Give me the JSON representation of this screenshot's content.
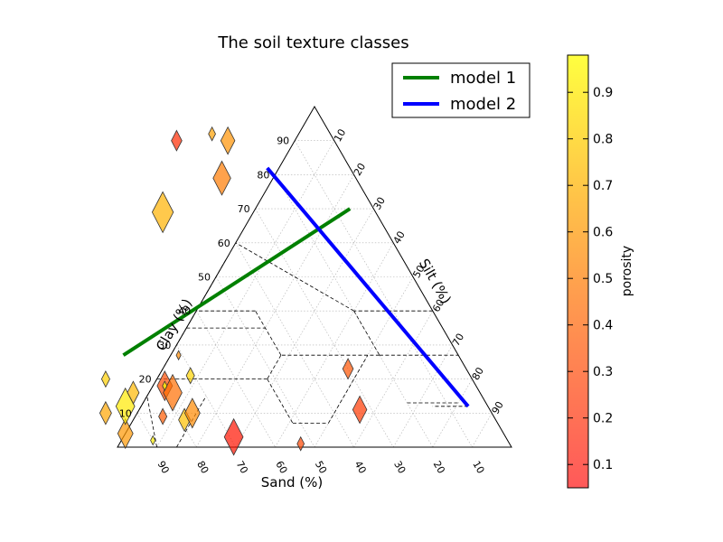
{
  "chart_data": {
    "type": "scatter",
    "title": "The soil texture classes",
    "axes": {
      "sand": {
        "label": "Sand (%)",
        "ticks": [
          10,
          20,
          30,
          40,
          50,
          60,
          70,
          80,
          90
        ]
      },
      "clay": {
        "label": "Clay (%)",
        "ticks": [
          10,
          20,
          30,
          40,
          50,
          60,
          70,
          80,
          90
        ]
      },
      "silt": {
        "label": "Silt (%)",
        "ticks": [
          10,
          20,
          30,
          40,
          50,
          60,
          70,
          80,
          90
        ]
      }
    },
    "grid": true,
    "legend": {
      "placement": "top-right",
      "entries": [
        {
          "label": "model 1",
          "color": "#008000"
        },
        {
          "label": "model 2",
          "color": "#0000ff"
        }
      ]
    },
    "lines": [
      {
        "name": "model 1",
        "color": "#008000",
        "points": [
          {
            "sand": 85,
            "clay": 27
          },
          {
            "sand": 6,
            "clay": 70
          }
        ]
      },
      {
        "name": "model 2",
        "color": "#0000ff",
        "points": [
          {
            "sand": 21,
            "clay": 82
          },
          {
            "sand": 5,
            "clay": 12
          }
        ]
      }
    ],
    "points": [
      {
        "sand": 30,
        "clay": 92,
        "porosity": 0.63
      },
      {
        "sand": 40,
        "clay": 90,
        "porosity": 0.2
      },
      {
        "sand": 27,
        "clay": 90,
        "porosity": 0.58
      },
      {
        "sand": 34,
        "clay": 79,
        "porosity": 0.5
      },
      {
        "sand": 54,
        "clay": 69,
        "porosity": 0.7
      },
      {
        "sand": 71,
        "clay": 27,
        "porosity": 0.55
      },
      {
        "sand": 93,
        "clay": 20,
        "porosity": 0.8
      },
      {
        "sand": 88,
        "clay": 16,
        "porosity": 0.72
      },
      {
        "sand": 79,
        "clay": 18,
        "porosity": 0.32
      },
      {
        "sand": 78,
        "clay": 16,
        "porosity": 0.45
      },
      {
        "sand": 79,
        "clay": 18,
        "porosity": 0.98
      },
      {
        "sand": 71,
        "clay": 21,
        "porosity": 0.82
      },
      {
        "sand": 98,
        "clay": 10,
        "porosity": 0.65
      },
      {
        "sand": 96,
        "clay": 4,
        "porosity": 0.6
      },
      {
        "sand": 92,
        "clay": 12,
        "porosity": 0.9
      },
      {
        "sand": 90,
        "clay": 2,
        "porosity": 0.92
      },
      {
        "sand": 84,
        "clay": 9,
        "porosity": 0.38
      },
      {
        "sand": 79,
        "clay": 8,
        "porosity": 0.75
      },
      {
        "sand": 76,
        "clay": 10,
        "porosity": 0.55
      },
      {
        "sand": 69,
        "clay": 3,
        "porosity": 0.12
      },
      {
        "sand": 53,
        "clay": 1,
        "porosity": 0.3
      },
      {
        "sand": 30,
        "clay": 23,
        "porosity": 0.35
      },
      {
        "sand": 33,
        "clay": 11,
        "porosity": 0.25
      }
    ],
    "colorbar": {
      "label": "porosity",
      "range": [
        0.05,
        0.98
      ],
      "ticks": [
        "0.1",
        "0.2",
        "0.3",
        "0.4",
        "0.5",
        "0.6",
        "0.7",
        "0.8",
        "0.9"
      ],
      "colormap": [
        "#ff0000",
        "#ffff00"
      ]
    }
  }
}
